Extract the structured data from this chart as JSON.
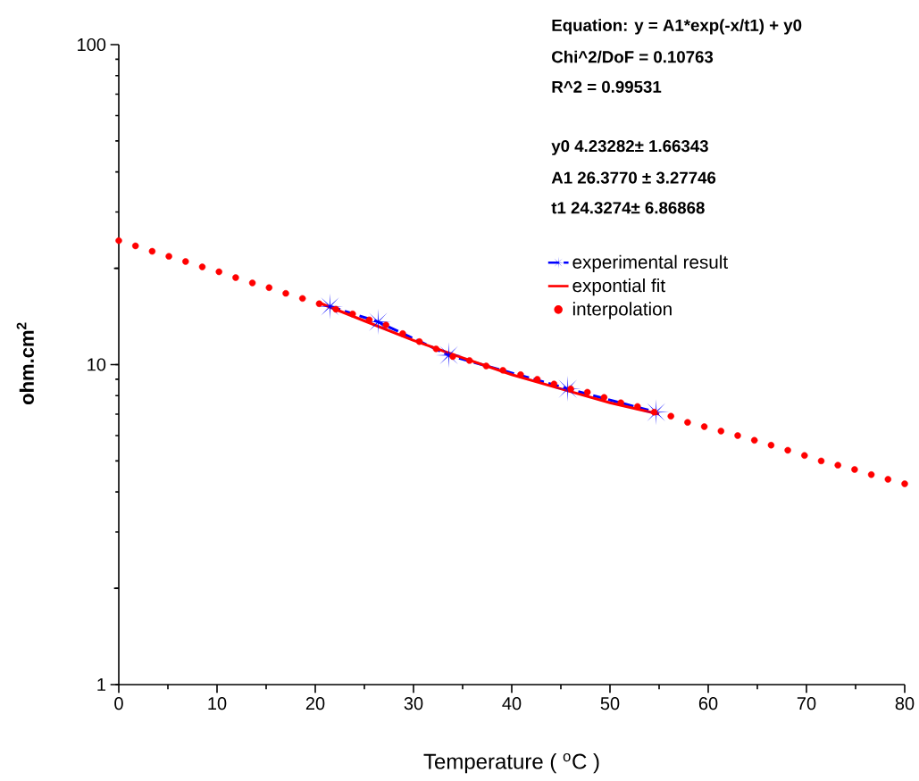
{
  "chart_data": {
    "type": "line",
    "xlabel": "Temperature ( $^{o}$C )",
    "ylabel": "ohm.cm$^{2}$",
    "xlim": [
      0,
      80
    ],
    "ylim": [
      1,
      100
    ],
    "log": "y",
    "xticks": [
      0,
      {
        "value": 5,
        "label": null
      },
      10,
      {
        "value": 15,
        "label": null
      },
      20,
      {
        "value": 25,
        "label": null
      },
      30,
      {
        "value": 35,
        "label": null
      },
      40,
      {
        "value": 45,
        "label": null
      },
      50,
      {
        "value": 55,
        "label": null
      },
      60,
      {
        "value": 65,
        "label": null
      },
      70,
      {
        "value": 75,
        "label": null
      },
      80
    ],
    "yticks": [
      1,
      {
        "value": 2,
        "label": null
      },
      10,
      {
        "value": 20,
        "label": null
      },
      100
    ],
    "grid": false,
    "legend": "top right",
    "annotations": [
      "Equation: y = A1*exp(-x/t1) + y0",
      "Chi^2/DoF        = 0.10763",
      "R^2     =  0.99531",
      "y0        4.23282± 1.66343",
      "A1        26.3770 ± 3.27746",
      "t1        24.3274± 6.86868"
    ],
    "series": [
      {
        "name": "experimental result",
        "color": "#0000ff",
        "marker": "star",
        "line_style": "dashed",
        "x": [
          21.5,
          26.4,
          33.6,
          45.7,
          54.7
        ],
        "values": [
          15.2,
          13.6,
          10.7,
          8.4,
          7.1
        ]
      },
      {
        "name": "expontial fit",
        "color": "#ff0000",
        "marker": "none",
        "line_style": "solid",
        "x": [
          20.4,
          25,
          30,
          35,
          40,
          45,
          50,
          55
        ],
        "values": [
          15.6,
          13.7,
          11.9,
          10.5,
          9.3,
          8.4,
          7.6,
          7.0
        ]
      },
      {
        "name": "interpolation",
        "type": "scatter",
        "color": "#ff0000",
        "marker": "circle",
        "x": [
          0,
          1.7,
          3.4,
          5.1,
          6.8,
          8.5,
          10.2,
          11.9,
          13.6,
          15.3,
          17.0,
          18.7,
          20.4,
          22.1,
          23.8,
          25.5,
          27.2,
          28.9,
          30.6,
          32.3,
          34.0,
          35.7,
          37.4,
          39.1,
          40.9,
          42.6,
          44.3,
          46.0,
          47.7,
          49.4,
          51.1,
          52.8,
          54.5,
          56.2,
          57.9,
          59.6,
          61.3,
          63.0,
          64.7,
          66.4,
          68.1,
          69.8,
          71.5,
          73.2,
          74.9,
          76.6,
          78.3,
          80.0
        ],
        "values": [
          24.4,
          23.5,
          22.6,
          21.8,
          21.0,
          20.2,
          19.5,
          18.7,
          18.0,
          17.4,
          16.7,
          16.1,
          15.5,
          14.9,
          14.4,
          13.8,
          13.3,
          12.5,
          11.8,
          11.2,
          10.6,
          10.3,
          9.9,
          9.6,
          9.3,
          9.0,
          8.7,
          8.4,
          8.2,
          7.9,
          7.6,
          7.4,
          7.1,
          6.9,
          6.6,
          6.4,
          6.2,
          6.0,
          5.8,
          5.6,
          5.4,
          5.2,
          5.0,
          4.85,
          4.7,
          4.53,
          4.38,
          4.24
        ]
      }
    ]
  }
}
